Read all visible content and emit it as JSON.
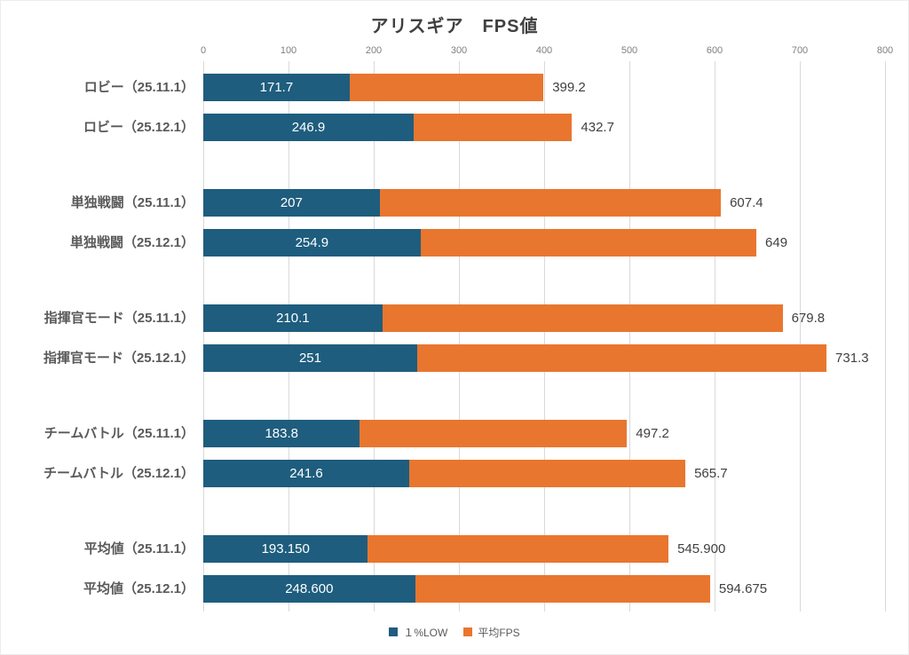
{
  "chart_data": {
    "type": "bar",
    "orientation": "horizontal",
    "stacked": true,
    "title": "アリスギア　FPS値",
    "x_axis": {
      "min": 0,
      "max": 800,
      "tick_step": 100,
      "ticks": [
        "0",
        "100",
        "200",
        "300",
        "400",
        "500",
        "600",
        "700",
        "800"
      ],
      "grid": true
    },
    "legend": {
      "position": "bottom"
    },
    "series": [
      {
        "name": "１%LOW",
        "color": "#1E5D7E"
      },
      {
        "name": "平均FPS",
        "color": "#E8762F"
      }
    ],
    "rows": [
      {
        "category": "ロビー（25.11.1）",
        "low": 171.7,
        "avg": 399.2,
        "low_label": "171.7",
        "avg_label": "399.2"
      },
      {
        "category": "ロビー（25.12.1）",
        "low": 246.9,
        "avg": 432.7,
        "low_label": "246.9",
        "avg_label": "432.7"
      },
      {
        "category": "単独戦闘（25.11.1）",
        "low": 207,
        "avg": 607.4,
        "low_label": "207",
        "avg_label": "607.4"
      },
      {
        "category": "単独戦闘（25.12.1）",
        "low": 254.9,
        "avg": 649,
        "low_label": "254.9",
        "avg_label": "649"
      },
      {
        "category": "指揮官モード（25.11.1）",
        "low": 210.1,
        "avg": 679.8,
        "low_label": "210.1",
        "avg_label": "679.8"
      },
      {
        "category": "指揮官モード（25.12.1）",
        "low": 251,
        "avg": 731.3,
        "low_label": "251",
        "avg_label": "731.3"
      },
      {
        "category": "チームバトル（25.11.1）",
        "low": 183.8,
        "avg": 497.2,
        "low_label": "183.8",
        "avg_label": "497.2"
      },
      {
        "category": "チームバトル（25.12.1）",
        "low": 241.6,
        "avg": 565.7,
        "low_label": "241.6",
        "avg_label": "565.7"
      },
      {
        "category": "平均値（25.11.1）",
        "low": 193.15,
        "avg": 545.9,
        "low_label": "193.150",
        "avg_label": "545.900"
      },
      {
        "category": "平均値（25.12.1）",
        "low": 248.6,
        "avg": 594.675,
        "low_label": "248.600",
        "avg_label": "594.675"
      }
    ],
    "colors": {
      "grid": "#d9d9d9",
      "title_text": "#404040",
      "category_text": "#595959",
      "tick_text": "#808080",
      "total_text": "#404040",
      "inner_value_text": "#ffffff",
      "background": "#ffffff"
    }
  }
}
